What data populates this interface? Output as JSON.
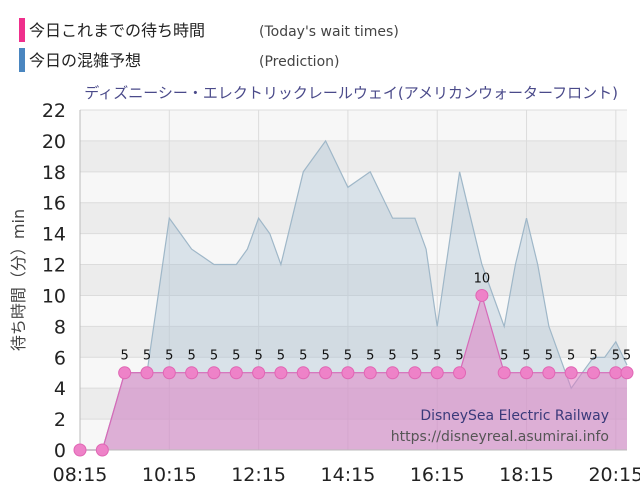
{
  "legend": [
    {
      "label": "今日これまでの待ち時間",
      "sublabel": "(Today's wait times)",
      "color": "#ef2f8c"
    },
    {
      "label": "今日の混雑予想",
      "sublabel": "(Prediction)",
      "color": "#4a86c0"
    }
  ],
  "credit": {
    "name": "DisneySea Electric Railway",
    "url": "https://disneyreal.asumirai.info"
  },
  "chart_data": {
    "type": "area",
    "title": "ディズニーシー・エレクトリックレールウェイ(アメリカンウォーターフロント)",
    "ylabel": "待ち時間（分）min",
    "xlabel": "",
    "ylim": [
      0,
      22
    ],
    "yticks": [
      0,
      2,
      4,
      6,
      8,
      10,
      12,
      14,
      16,
      18,
      20,
      22
    ],
    "xlim": [
      "08:15",
      "20:30"
    ],
    "xticks": [
      "08:15",
      "10:15",
      "12:15",
      "14:15",
      "16:15",
      "18:15",
      "20:15"
    ],
    "grid": true,
    "series": [
      {
        "name": "今日の混雑予想",
        "color": "#a9c1d3",
        "x": [
          "08:15",
          "08:45",
          "09:15",
          "09:45",
          "10:15",
          "10:30",
          "10:45",
          "11:00",
          "11:15",
          "11:30",
          "11:45",
          "12:00",
          "12:15",
          "12:30",
          "12:45",
          "13:00",
          "13:15",
          "13:30",
          "13:45",
          "14:00",
          "14:15",
          "14:30",
          "14:45",
          "15:00",
          "15:15",
          "15:30",
          "15:45",
          "16:00",
          "16:15",
          "16:30",
          "16:45",
          "17:00",
          "17:15",
          "17:30",
          "17:45",
          "18:00",
          "18:15",
          "18:30",
          "18:45",
          "19:00",
          "19:15",
          "19:30",
          "19:45",
          "20:00",
          "20:15",
          "20:30"
        ],
        "y": [
          0,
          0,
          5,
          5,
          15,
          14,
          13,
          12.5,
          12,
          12,
          12,
          13,
          15,
          14,
          12,
          15,
          18,
          19,
          20,
          18.5,
          17,
          17.5,
          18,
          16.5,
          15,
          15,
          15,
          13,
          8,
          13,
          18,
          15,
          12,
          10,
          8,
          12,
          15,
          12,
          8,
          6,
          4,
          5,
          6,
          6,
          7,
          5.5
        ]
      },
      {
        "name": "今日これまでの待ち時間",
        "color": "#e27cc4",
        "x": [
          "08:15",
          "08:45",
          "09:15",
          "09:45",
          "10:15",
          "10:45",
          "11:15",
          "11:45",
          "12:15",
          "12:45",
          "13:15",
          "13:45",
          "14:15",
          "14:45",
          "15:15",
          "15:45",
          "16:15",
          "16:45",
          "17:15",
          "17:45",
          "18:15",
          "18:45",
          "19:15",
          "19:45",
          "20:15",
          "20:30"
        ],
        "y": [
          0,
          0,
          5,
          5,
          5,
          5,
          5,
          5,
          5,
          5,
          5,
          5,
          5,
          5,
          5,
          5,
          5,
          5,
          10,
          5,
          5,
          5,
          5,
          5,
          5,
          5
        ],
        "labels": [
          "",
          "",
          "5",
          "5",
          "5",
          "5",
          "5",
          "5",
          "5",
          "5",
          "5",
          "5",
          "5",
          "5",
          "5",
          "5",
          "5",
          "5",
          "10",
          "5",
          "5",
          "5",
          "5",
          "5",
          "5",
          "5"
        ]
      }
    ]
  }
}
